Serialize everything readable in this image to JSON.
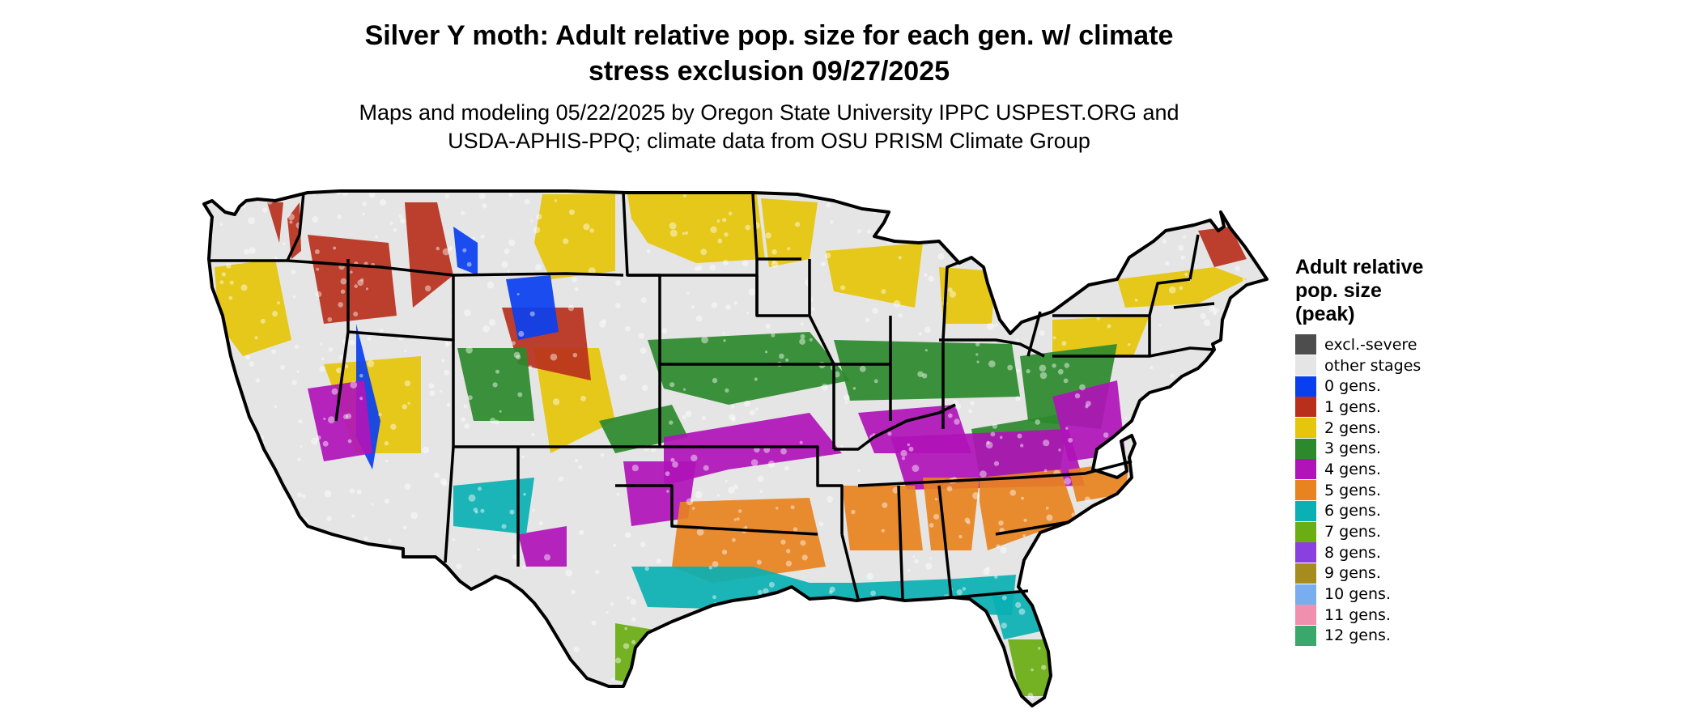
{
  "title_lines": [
    "Silver Y moth: Adult relative pop. size for each gen. w/ climate",
    "stress exclusion 09/27/2025"
  ],
  "subtitle_lines": [
    "Maps and modeling 05/22/2025 by Oregon State University IPPC USPEST.ORG and",
    "USDA-APHIS-PPQ; climate data from OSU PRISM Climate Group"
  ],
  "legend": {
    "title_lines": [
      "Adult relative",
      "pop. size",
      "(peak)"
    ],
    "items": [
      {
        "label": "excl.-severe",
        "color": "#4d4d4d"
      },
      {
        "label": "other stages",
        "color": "#e5e5e5"
      },
      {
        "label": "0 gens.",
        "color": "#0a3ff0"
      },
      {
        "label": "1 gens.",
        "color": "#b8301c"
      },
      {
        "label": "2 gens.",
        "color": "#e6c60a"
      },
      {
        "label": "3 gens.",
        "color": "#2c8a2c"
      },
      {
        "label": "4 gens.",
        "color": "#b013b8"
      },
      {
        "label": "5 gens.",
        "color": "#e8831f"
      },
      {
        "label": "6 gens.",
        "color": "#0ab0b3"
      },
      {
        "label": "7 gens.",
        "color": "#6aae13"
      },
      {
        "label": "8 gens.",
        "color": "#8a3fe0"
      },
      {
        "label": "9 gens.",
        "color": "#a68b1f"
      },
      {
        "label": "10 gens.",
        "color": "#78aef0"
      },
      {
        "label": "11 gens.",
        "color": "#f08fae"
      },
      {
        "label": "12 gens.",
        "color": "#3aa86a"
      }
    ]
  }
}
